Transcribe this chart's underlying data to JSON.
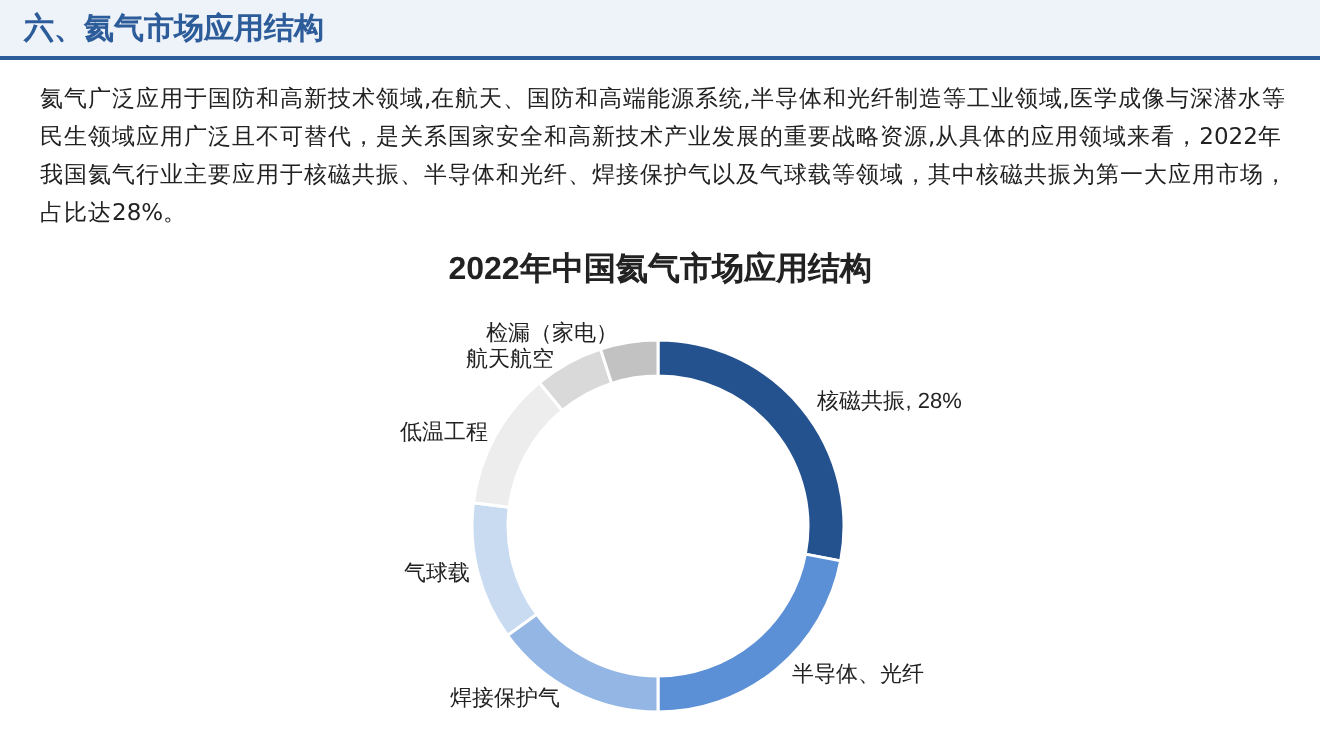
{
  "chart_data": {
    "type": "donut",
    "title": "2022年中国氦气市场应用结构",
    "annotations": [
      "六、氦气市场应用结构",
      "氦气广泛应用于国防和高新技术领域,在航天、国防和高端能源系统,半导体和光纤制造等工业领域,医学成像与深潜水等民生领域应用广泛且不可替代，是关系国家安全和高新技术产业发展的重要战略资源,从具体的应用领域来看，2022年我国氦气行业主要应用于核磁共振、半导体和光纤、焊接保护气以及气球载等领域，其中核磁共振为第一大应用市场，占比达28%。"
    ],
    "categories": [
      "核磁共振",
      "半导体、光纤",
      "焊接保护气",
      "气球载",
      "低温工程",
      "航天航空",
      "检漏（家电）"
    ],
    "values": [
      28,
      22,
      15,
      12,
      12,
      6,
      5
    ],
    "value_labels": [
      "28%",
      null,
      null,
      null,
      null,
      null,
      null
    ],
    "colors": [
      "#24528f",
      "#5b8fd6",
      "#93b6e4",
      "#c9dbf1",
      "#ededed",
      "#d9d9d9",
      "#c2c2c2"
    ],
    "legend": false
  }
}
